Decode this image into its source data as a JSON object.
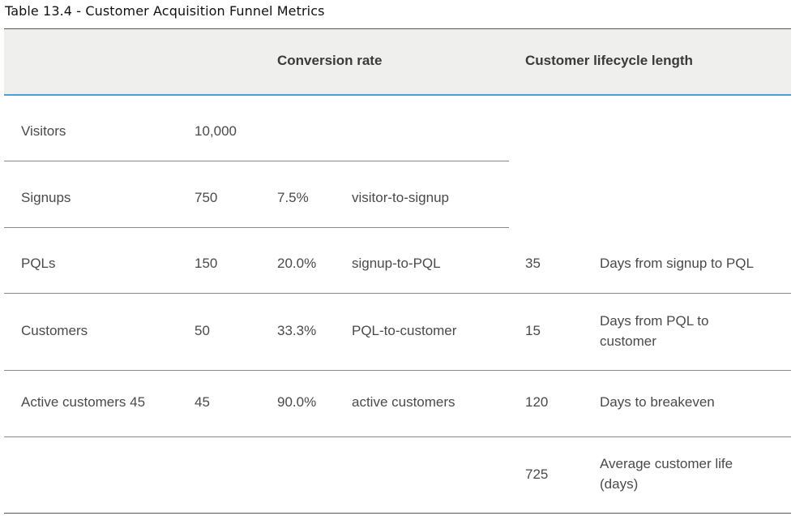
{
  "caption": "Table 13.4 - Customer Acquisition Funnel Metrics",
  "header": {
    "conversion_rate": "Conversion rate",
    "lifecycle_length": "Customer lifecycle length"
  },
  "rows": [
    {
      "stage": "Visitors",
      "count": "10,000",
      "rate": "",
      "rate_label": "",
      "days": "",
      "days_label": ""
    },
    {
      "stage": "Signups",
      "count": "750",
      "rate": "7.5%",
      "rate_label": "visitor-to-signup",
      "days": "",
      "days_label": ""
    },
    {
      "stage": "PQLs",
      "count": "150",
      "rate": "20.0%",
      "rate_label": "signup-to-PQL",
      "days": "35",
      "days_label": "Days from signup to PQL"
    },
    {
      "stage": "Customers",
      "count": "50",
      "rate": "33.3%",
      "rate_label": "PQL-to-customer",
      "days": "15",
      "days_label_line1": "Days from PQL to",
      "days_label_line2": "customer"
    },
    {
      "stage": "Active customers 45",
      "count": "45",
      "rate": "90.0%",
      "rate_label": "active customers",
      "days": "120",
      "days_label": "Days to breakeven"
    },
    {
      "stage": "",
      "count": "",
      "rate": "",
      "rate_label": "",
      "days": "725",
      "days_label_line1": "Average customer life",
      "days_label_line2": "(days)"
    }
  ]
}
